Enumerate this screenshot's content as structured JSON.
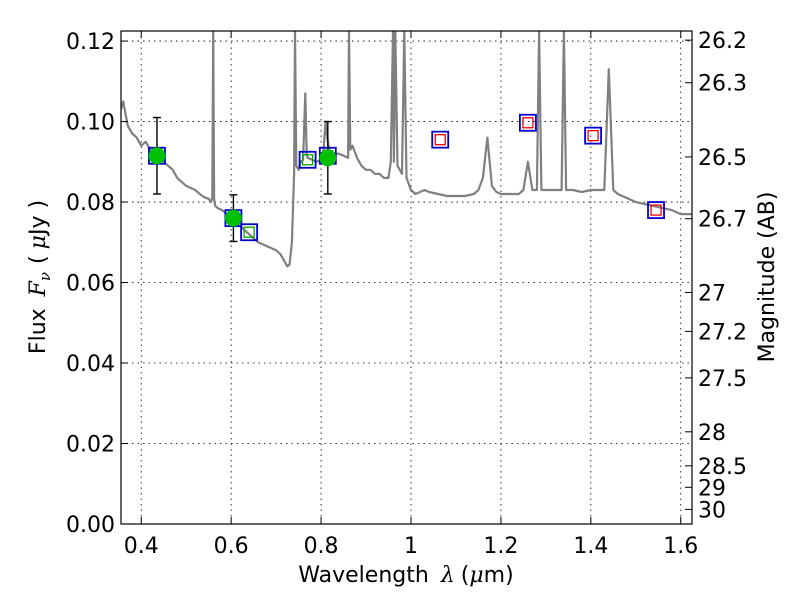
{
  "chart_data": {
    "type": "line",
    "xlabel": {
      "prefix": "Wavelength",
      "symbol": "λ",
      "unit_open": "(",
      "unit_symbol": "μ",
      "unit_rest": "m)"
    },
    "ylabel": {
      "prefix": "Flux",
      "symbol": "F",
      "subscript": "ν",
      "unit_open": "(",
      "unit_symbol": "μ",
      "unit_rest": "Jy )"
    },
    "y2label": "Magnitude (AB)",
    "xlim": [
      0.355,
      1.625
    ],
    "ylim": [
      0.0,
      0.1225
    ],
    "grid": true,
    "x_ticks": [
      0.4,
      0.6,
      0.8,
      1.0,
      1.2,
      1.4,
      1.6
    ],
    "x_tick_labels": [
      "0.4",
      "0.6",
      "0.8",
      "1",
      "1.2",
      "1.4",
      "1.6"
    ],
    "y_ticks": [
      0.0,
      0.02,
      0.04,
      0.06,
      0.08,
      0.1,
      0.12
    ],
    "y_tick_labels": [
      "0.00",
      "0.02",
      "0.04",
      "0.06",
      "0.08",
      "0.10",
      "0.12"
    ],
    "y2_ticks": [
      {
        "mag": 26.2,
        "label": "26.2"
      },
      {
        "mag": 26.3,
        "label": "26.3"
      },
      {
        "mag": 26.5,
        "label": "26.5"
      },
      {
        "mag": 26.7,
        "label": "26.7"
      },
      {
        "mag": 27.0,
        "label": "27"
      },
      {
        "mag": 27.2,
        "label": "27.2"
      },
      {
        "mag": 27.5,
        "label": "27.5"
      },
      {
        "mag": 28.0,
        "label": "28"
      },
      {
        "mag": 28.5,
        "label": "28.5"
      },
      {
        "mag": 29.0,
        "label": "29"
      },
      {
        "mag": 30.0,
        "label": "30"
      }
    ],
    "colors": {
      "spectrum": "#808080",
      "observed": "#00c000",
      "model_box": "#0000cc",
      "model_inner": "#00aa00",
      "predicted_inner": "#ee0000",
      "error_bar": "#000000"
    },
    "series": [
      {
        "kind": "spectrum",
        "points": [
          [
            0.355,
            0.103
          ],
          [
            0.36,
            0.105
          ],
          [
            0.37,
            0.099
          ],
          [
            0.38,
            0.097
          ],
          [
            0.39,
            0.096
          ],
          [
            0.4,
            0.094
          ],
          [
            0.41,
            0.095
          ],
          [
            0.42,
            0.093
          ],
          [
            0.43,
            0.092
          ],
          [
            0.44,
            0.0915
          ],
          [
            0.45,
            0.09
          ],
          [
            0.46,
            0.089
          ],
          [
            0.47,
            0.088
          ],
          [
            0.48,
            0.086
          ],
          [
            0.49,
            0.085
          ],
          [
            0.5,
            0.084
          ],
          [
            0.51,
            0.0835
          ],
          [
            0.52,
            0.083
          ],
          [
            0.53,
            0.082
          ],
          [
            0.54,
            0.0812
          ],
          [
            0.55,
            0.0808
          ],
          [
            0.555,
            0.08
          ],
          [
            0.558,
            0.081
          ],
          [
            0.56,
            0.1225
          ],
          [
            0.562,
            0.0805
          ],
          [
            0.565,
            0.079
          ],
          [
            0.57,
            0.0785
          ],
          [
            0.58,
            0.078
          ],
          [
            0.59,
            0.077
          ],
          [
            0.6,
            0.076
          ],
          [
            0.61,
            0.075
          ],
          [
            0.62,
            0.074
          ],
          [
            0.63,
            0.073
          ],
          [
            0.64,
            0.072
          ],
          [
            0.65,
            0.071
          ],
          [
            0.66,
            0.07
          ],
          [
            0.67,
            0.0695
          ],
          [
            0.68,
            0.069
          ],
          [
            0.69,
            0.0685
          ],
          [
            0.7,
            0.068
          ],
          [
            0.71,
            0.067
          ],
          [
            0.715,
            0.066
          ],
          [
            0.72,
            0.065
          ],
          [
            0.725,
            0.064
          ],
          [
            0.73,
            0.0645
          ],
          [
            0.735,
            0.07
          ],
          [
            0.74,
            0.087
          ],
          [
            0.742,
            0.1225
          ],
          [
            0.745,
            0.089
          ],
          [
            0.75,
            0.088
          ],
          [
            0.755,
            0.09
          ],
          [
            0.76,
            0.0905
          ],
          [
            0.765,
            0.107
          ],
          [
            0.768,
            0.092
          ],
          [
            0.77,
            0.091
          ],
          [
            0.78,
            0.0905
          ],
          [
            0.79,
            0.09
          ],
          [
            0.8,
            0.0905
          ],
          [
            0.805,
            0.092
          ],
          [
            0.81,
            0.1
          ],
          [
            0.815,
            0.095
          ],
          [
            0.82,
            0.092
          ],
          [
            0.83,
            0.092
          ],
          [
            0.84,
            0.092
          ],
          [
            0.85,
            0.0915
          ],
          [
            0.86,
            0.091
          ],
          [
            0.862,
            0.1225
          ],
          [
            0.865,
            0.093
          ],
          [
            0.87,
            0.094
          ],
          [
            0.88,
            0.091
          ],
          [
            0.89,
            0.089
          ],
          [
            0.9,
            0.088
          ],
          [
            0.91,
            0.088
          ],
          [
            0.92,
            0.087
          ],
          [
            0.93,
            0.087
          ],
          [
            0.94,
            0.086
          ],
          [
            0.95,
            0.086
          ],
          [
            0.955,
            0.09
          ],
          [
            0.96,
            0.1225
          ],
          [
            0.962,
            0.09
          ],
          [
            0.965,
            0.1225
          ],
          [
            0.97,
            0.089
          ],
          [
            0.98,
            0.087
          ],
          [
            0.985,
            0.1225
          ],
          [
            0.99,
            0.086
          ],
          [
            1.0,
            0.083
          ],
          [
            1.01,
            0.082
          ],
          [
            1.02,
            0.0825
          ],
          [
            1.03,
            0.083
          ],
          [
            1.04,
            0.0825
          ],
          [
            1.06,
            0.082
          ],
          [
            1.08,
            0.0815
          ],
          [
            1.1,
            0.0815
          ],
          [
            1.12,
            0.0815
          ],
          [
            1.14,
            0.082
          ],
          [
            1.15,
            0.083
          ],
          [
            1.16,
            0.086
          ],
          [
            1.17,
            0.096
          ],
          [
            1.18,
            0.084
          ],
          [
            1.19,
            0.0825
          ],
          [
            1.2,
            0.082
          ],
          [
            1.22,
            0.082
          ],
          [
            1.24,
            0.082
          ],
          [
            1.25,
            0.083
          ],
          [
            1.26,
            0.09
          ],
          [
            1.27,
            0.083
          ],
          [
            1.28,
            0.083
          ],
          [
            1.285,
            0.1225
          ],
          [
            1.29,
            0.083
          ],
          [
            1.3,
            0.083
          ],
          [
            1.32,
            0.083
          ],
          [
            1.335,
            0.083
          ],
          [
            1.34,
            0.1225
          ],
          [
            1.345,
            0.083
          ],
          [
            1.36,
            0.083
          ],
          [
            1.38,
            0.0825
          ],
          [
            1.4,
            0.083
          ],
          [
            1.42,
            0.083
          ],
          [
            1.43,
            0.083
          ],
          [
            1.44,
            0.113
          ],
          [
            1.45,
            0.083
          ],
          [
            1.46,
            0.082
          ],
          [
            1.48,
            0.081
          ],
          [
            1.5,
            0.08
          ],
          [
            1.52,
            0.0795
          ],
          [
            1.54,
            0.079
          ],
          [
            1.56,
            0.0785
          ],
          [
            1.58,
            0.078
          ],
          [
            1.6,
            0.077
          ],
          [
            1.625,
            0.077
          ]
        ]
      },
      {
        "kind": "observed",
        "points": [
          {
            "x": 0.435,
            "y": 0.0915,
            "yerr": 0.0095
          },
          {
            "x": 0.605,
            "y": 0.076,
            "yerr": 0.0058
          },
          {
            "x": 0.815,
            "y": 0.091,
            "yerr": 0.009
          }
        ]
      },
      {
        "kind": "model",
        "points": [
          {
            "x": 0.435,
            "y": 0.0915
          },
          {
            "x": 0.605,
            "y": 0.076
          },
          {
            "x": 0.64,
            "y": 0.0725
          },
          {
            "x": 0.77,
            "y": 0.0905
          },
          {
            "x": 0.815,
            "y": 0.0915
          }
        ]
      },
      {
        "kind": "predicted",
        "points": [
          {
            "x": 1.065,
            "y": 0.0955
          },
          {
            "x": 1.26,
            "y": 0.0997
          },
          {
            "x": 1.405,
            "y": 0.0965
          },
          {
            "x": 1.545,
            "y": 0.078
          }
        ]
      }
    ]
  }
}
